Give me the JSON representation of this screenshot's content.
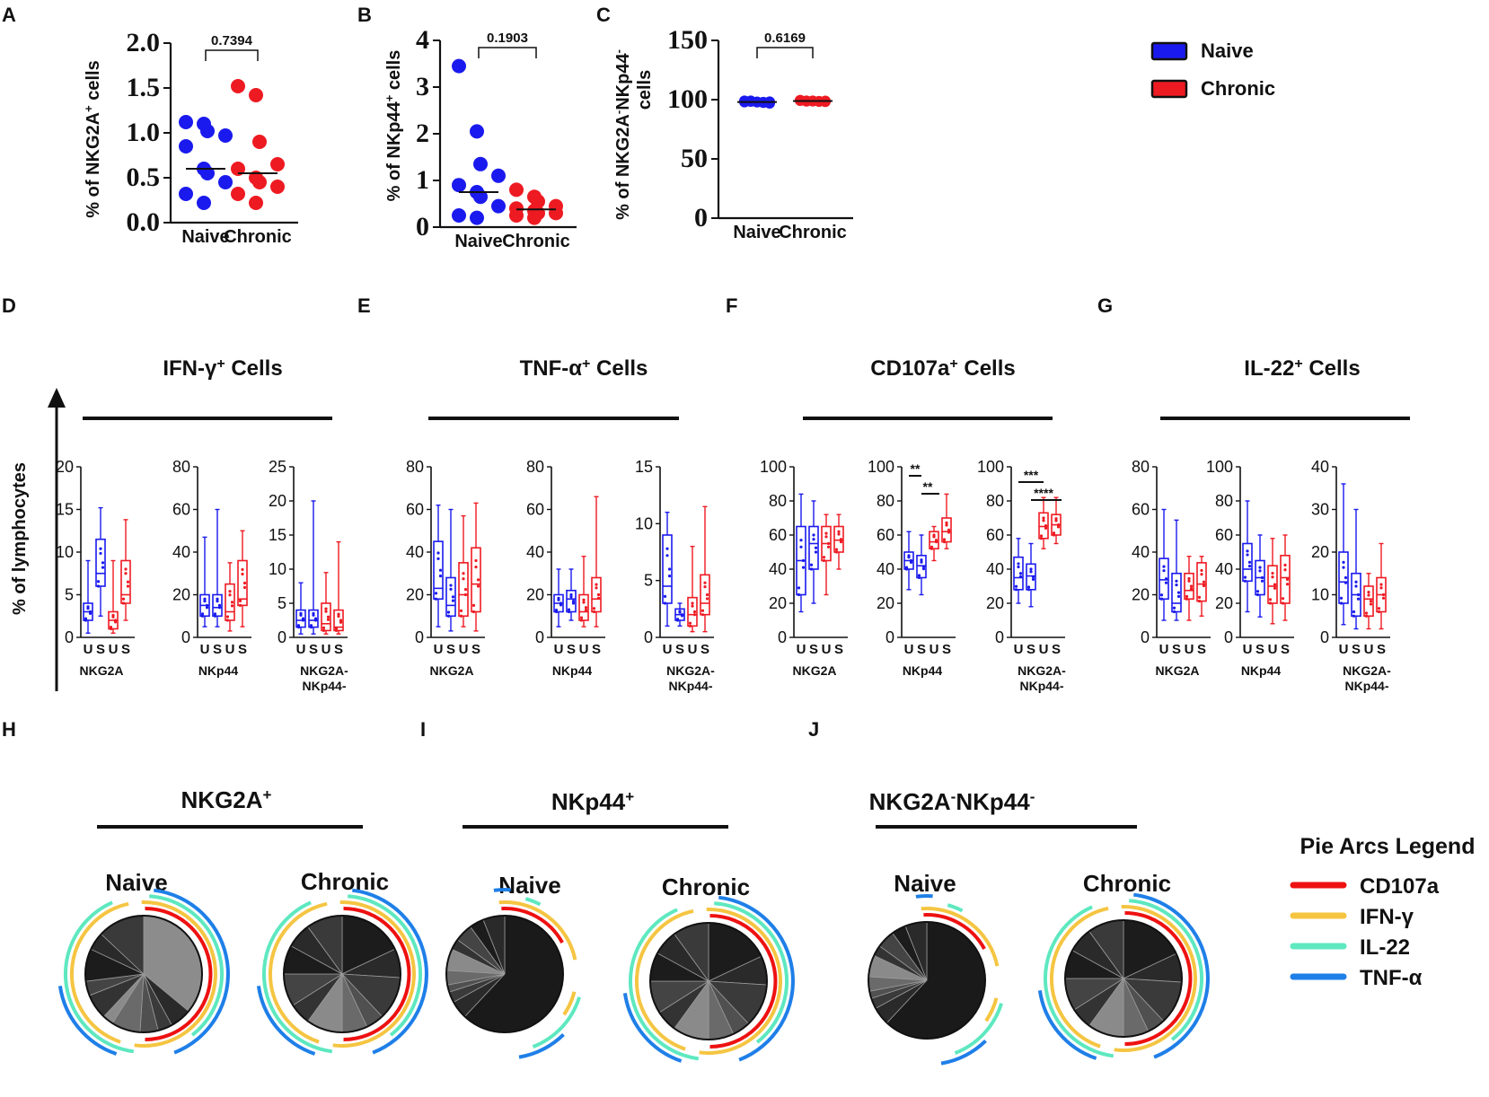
{
  "colors": {
    "naive": "#1a1aee",
    "chronic": "#ee1a22",
    "cd107a": "#ee1111",
    "ifng": "#f5c542",
    "il22": "#5ee8c0",
    "tnfa": "#1f7fe8",
    "pie_dark": "#1c1c1c"
  },
  "panel_letters": [
    "A",
    "B",
    "C",
    "D",
    "E",
    "F",
    "G",
    "H",
    "I",
    "J"
  ],
  "legend": {
    "naive": "Naive",
    "chronic": "Chronic"
  },
  "lymph_axis_label": "% of lymphocytes",
  "chart_data": [
    {
      "id": "A",
      "type": "scatter",
      "ylabel": "% of NKG2A+ cells",
      "ylabel_main": "% of NKG2A",
      "ylabel_sup": "+",
      "ylabel_rest": " cells",
      "ylim": [
        0,
        2.0
      ],
      "yticks": [
        "0.0",
        "0.5",
        "1.0",
        "1.5",
        "2.0"
      ],
      "yvals": [
        0,
        0.5,
        1.0,
        1.5,
        2.0
      ],
      "categories": [
        "Naive",
        "Chronic"
      ],
      "pvalue": "0.7394",
      "series": [
        {
          "name": "Naive",
          "values": [
            1.12,
            1.1,
            1.02,
            0.97,
            0.85,
            0.6,
            0.55,
            0.45,
            0.32,
            0.22
          ],
          "mean": 0.6
        },
        {
          "name": "Chronic",
          "values": [
            1.52,
            1.42,
            0.9,
            0.65,
            0.6,
            0.5,
            0.45,
            0.4,
            0.32,
            0.22
          ],
          "mean": 0.55
        }
      ]
    },
    {
      "id": "B",
      "type": "scatter",
      "ylabel": "% of NKp44+ cells",
      "ylabel_main": "% of NKp44",
      "ylabel_sup": "+",
      "ylabel_rest": " cells",
      "ylim": [
        0,
        4
      ],
      "yticks": [
        "0",
        "1",
        "2",
        "3",
        "4"
      ],
      "yvals": [
        0,
        1,
        2,
        3,
        4
      ],
      "categories": [
        "Naive",
        "Chronic"
      ],
      "pvalue": "0.1903",
      "series": [
        {
          "name": "Naive",
          "values": [
            3.45,
            2.05,
            1.35,
            1.1,
            0.9,
            0.75,
            0.65,
            0.45,
            0.25,
            0.2
          ],
          "mean": 0.75
        },
        {
          "name": "Chronic",
          "values": [
            0.8,
            0.65,
            0.55,
            0.45,
            0.4,
            0.35,
            0.3,
            0.3,
            0.25,
            0.2
          ],
          "mean": 0.38
        }
      ]
    },
    {
      "id": "C",
      "type": "scatter",
      "ylabel": "% of NKG2A-NKp44- cells",
      "ylabel_main": "% of NKG2A",
      "ylabel_sup": "-",
      "ylabel_mid": "NKp44",
      "ylabel_sup2": "-",
      "ylabel_line2": "cells",
      "ylim": [
        0,
        150
      ],
      "yticks": [
        "0",
        "50",
        "100",
        "150"
      ],
      "yvals": [
        0,
        50,
        100,
        150
      ],
      "categories": [
        "Naive",
        "Chronic"
      ],
      "pvalue": "0.6169",
      "series": [
        {
          "name": "Naive",
          "values": [
            99,
            98.5,
            98,
            97.5,
            97,
            98,
            99,
            98,
            97.8,
            98.2
          ],
          "mean": 98
        },
        {
          "name": "Chronic",
          "values": [
            99.5,
            99,
            98.8,
            98.5,
            98.3,
            99.2,
            98.7,
            99,
            98.6,
            98.9
          ],
          "mean": 98.9
        }
      ]
    },
    {
      "id": "D",
      "type": "box",
      "title_main": "IFN-γ",
      "title_sup": "+",
      "title_rest": " Cells",
      "groups": [
        {
          "label": "NKG2A",
          "yticks": [
            "0",
            "5",
            "10",
            "15",
            "20"
          ],
          "ymax": 20,
          "ticks_xlabels": [
            "U",
            "S",
            "U",
            "S"
          ],
          "boxes": [
            {
              "min": 0.5,
              "q1": 2,
              "med": 3,
              "q3": 4,
              "max": 9
            },
            {
              "min": 2.5,
              "q1": 6,
              "med": 7.5,
              "q3": 11.5,
              "max": 15.2
            },
            {
              "min": 0.5,
              "q1": 1,
              "med": 2,
              "q3": 3,
              "max": 9
            },
            {
              "min": 2,
              "q1": 4,
              "med": 5,
              "q3": 9,
              "max": 13.8
            }
          ]
        },
        {
          "label": "NKp44",
          "yticks": [
            "0",
            "20",
            "40",
            "60",
            "80"
          ],
          "ymax": 80,
          "ticks_xlabels": [
            "U",
            "S",
            "U",
            "S"
          ],
          "boxes": [
            {
              "min": 5,
              "q1": 10,
              "med": 15,
              "q3": 20,
              "max": 47
            },
            {
              "min": 5,
              "q1": 10,
              "med": 14,
              "q3": 20,
              "max": 60
            },
            {
              "min": 3,
              "q1": 8,
              "med": 12,
              "q3": 25,
              "max": 35
            },
            {
              "min": 5,
              "q1": 15,
              "med": 18,
              "q3": 36,
              "max": 50
            }
          ]
        },
        {
          "label": "NKG2A-NKp44-",
          "label_line1": "NKG2A-",
          "label_line2": "NKp44-",
          "yticks": [
            "0",
            "5",
            "10",
            "15",
            "20",
            "25"
          ],
          "ymax": 25,
          "ticks_xlabels": [
            "U",
            "S",
            "U",
            "S"
          ],
          "boxes": [
            {
              "min": 0.5,
              "q1": 1.5,
              "med": 2.5,
              "q3": 4,
              "max": 8
            },
            {
              "min": 0.5,
              "q1": 1.5,
              "med": 2.5,
              "q3": 4,
              "max": 20
            },
            {
              "min": 0.5,
              "q1": 1,
              "med": 2,
              "q3": 5,
              "max": 9.5
            },
            {
              "min": 0.5,
              "q1": 1,
              "med": 1.5,
              "q3": 4,
              "max": 14
            }
          ]
        }
      ]
    },
    {
      "id": "E",
      "type": "box",
      "title_main": "TNF-α",
      "title_sup": "+",
      "title_rest": " Cells",
      "groups": [
        {
          "label": "NKG2A",
          "yticks": [
            "0",
            "20",
            "40",
            "60",
            "80"
          ],
          "ymax": 80,
          "ticks_xlabels": [
            "U",
            "S",
            "U",
            "S"
          ],
          "boxes": [
            {
              "min": 5,
              "q1": 18,
              "med": 23,
              "q3": 45,
              "max": 62
            },
            {
              "min": 3,
              "q1": 10,
              "med": 15,
              "q3": 28,
              "max": 60
            },
            {
              "min": 5,
              "q1": 10,
              "med": 20,
              "q3": 35,
              "max": 57
            },
            {
              "min": 3,
              "q1": 12,
              "med": 25,
              "q3": 42,
              "max": 63
            }
          ]
        },
        {
          "label": "NKp44",
          "yticks": [
            "0",
            "20",
            "40",
            "60",
            "80"
          ],
          "ymax": 80,
          "ticks_xlabels": [
            "U",
            "S",
            "U",
            "S"
          ],
          "boxes": [
            {
              "min": 5,
              "q1": 12,
              "med": 16,
              "q3": 20,
              "max": 32
            },
            {
              "min": 8,
              "q1": 12,
              "med": 18,
              "q3": 22,
              "max": 32
            },
            {
              "min": 5,
              "q1": 8,
              "med": 12,
              "q3": 20,
              "max": 38
            },
            {
              "min": 5,
              "q1": 12,
              "med": 18,
              "q3": 28,
              "max": 66
            }
          ]
        },
        {
          "label": "NKG2A-NKp44-",
          "label_line1": "NKG2A-",
          "label_line2": "NKp44-",
          "yticks": [
            "0",
            "5",
            "10",
            "15"
          ],
          "ymax": 15,
          "ticks_xlabels": [
            "U",
            "S",
            "U",
            "S"
          ],
          "boxes": [
            {
              "min": 1,
              "q1": 3,
              "med": 4.5,
              "q3": 9,
              "max": 11
            },
            {
              "min": 1,
              "q1": 1.5,
              "med": 2,
              "q3": 2.5,
              "max": 3
            },
            {
              "min": 0.5,
              "q1": 1,
              "med": 2,
              "q3": 3.5,
              "max": 8
            },
            {
              "min": 0.5,
              "q1": 2,
              "med": 3,
              "q3": 5.5,
              "max": 11.5
            }
          ]
        }
      ]
    },
    {
      "id": "F",
      "type": "box",
      "title_main": "CD107a",
      "title_sup": "+",
      "title_rest": " Cells",
      "groups": [
        {
          "label": "NKG2A",
          "yticks": [
            "0",
            "20",
            "40",
            "60",
            "80",
            "100"
          ],
          "ymax": 100,
          "ticks_xlabels": [
            "U",
            "S",
            "U",
            "S"
          ],
          "boxes": [
            {
              "min": 15,
              "q1": 25,
              "med": 45,
              "q3": 65,
              "max": 84
            },
            {
              "min": 20,
              "q1": 40,
              "med": 55,
              "q3": 65,
              "max": 80
            },
            {
              "min": 25,
              "q1": 45,
              "med": 55,
              "q3": 65,
              "max": 72
            },
            {
              "min": 40,
              "q1": 50,
              "med": 57,
              "q3": 65,
              "max": 72
            }
          ]
        },
        {
          "label": "NKp44",
          "yticks": [
            "0",
            "20",
            "40",
            "60",
            "80",
            "100"
          ],
          "ymax": 100,
          "ticks_xlabels": [
            "U",
            "S",
            "U",
            "S"
          ],
          "sig": [
            {
              "from": 0,
              "to": 1,
              "level": 0,
              "text": "**"
            },
            {
              "from": 1,
              "to": 2,
              "level": 1,
              "text": "**"
            }
          ],
          "boxes": [
            {
              "min": 28,
              "q1": 40,
              "med": 45,
              "q3": 50,
              "max": 62
            },
            {
              "min": 25,
              "q1": 35,
              "med": 42,
              "q3": 48,
              "max": 60
            },
            {
              "min": 45,
              "q1": 52,
              "med": 56,
              "q3": 62,
              "max": 65
            },
            {
              "min": 52,
              "q1": 56,
              "med": 62,
              "q3": 70,
              "max": 84
            }
          ]
        },
        {
          "label": "NKG2A-NKp44-",
          "label_line1": "NKG2A-",
          "label_line2": "NKp44-",
          "yticks": [
            "0",
            "20",
            "40",
            "60",
            "80",
            "100"
          ],
          "ymax": 100,
          "ticks_xlabels": [
            "U",
            "S",
            "U",
            "S"
          ],
          "sig": [
            {
              "from": 0,
              "to": 2,
              "level": 0,
              "text": "***"
            },
            {
              "from": 1,
              "to": 3,
              "level": 1,
              "text": "****"
            }
          ],
          "boxes": [
            {
              "min": 20,
              "q1": 28,
              "med": 35,
              "q3": 47,
              "max": 58
            },
            {
              "min": 18,
              "q1": 28,
              "med": 36,
              "q3": 43,
              "max": 55
            },
            {
              "min": 52,
              "q1": 58,
              "med": 65,
              "q3": 73,
              "max": 82
            },
            {
              "min": 55,
              "q1": 60,
              "med": 66,
              "q3": 72,
              "max": 82
            }
          ]
        }
      ]
    },
    {
      "id": "G",
      "type": "box",
      "title_main": "IL-22",
      "title_sup": "+",
      "title_rest": " Cells",
      "groups": [
        {
          "label": "NKG2A",
          "yticks": [
            "0",
            "20",
            "40",
            "60",
            "80"
          ],
          "ymax": 80,
          "ticks_xlabels": [
            "U",
            "S",
            "U",
            "S"
          ],
          "boxes": [
            {
              "min": 8,
              "q1": 18,
              "med": 27,
              "q3": 37,
              "max": 60
            },
            {
              "min": 8,
              "q1": 12,
              "med": 16,
              "q3": 30,
              "max": 55
            },
            {
              "min": 8,
              "q1": 18,
              "med": 22,
              "q3": 30,
              "max": 38
            },
            {
              "min": 10,
              "q1": 17,
              "med": 25,
              "q3": 35,
              "max": 38
            }
          ]
        },
        {
          "label": "NKp44",
          "yticks": [
            "0",
            "20",
            "40",
            "60",
            "80",
            "100"
          ],
          "ymax": 100,
          "ticks_xlabels": [
            "U",
            "S",
            "U",
            "S"
          ],
          "boxes": [
            {
              "min": 15,
              "q1": 33,
              "med": 40,
              "q3": 55,
              "max": 80
            },
            {
              "min": 12,
              "q1": 25,
              "med": 35,
              "q3": 45,
              "max": 60
            },
            {
              "min": 8,
              "q1": 20,
              "med": 30,
              "q3": 42,
              "max": 58
            },
            {
              "min": 10,
              "q1": 20,
              "med": 35,
              "q3": 48,
              "max": 60
            }
          ]
        },
        {
          "label": "NKG2A-NKp44-",
          "label_line1": "NKG2A-",
          "label_line2": "NKp44-",
          "yticks": [
            "0",
            "10",
            "20",
            "30",
            "40"
          ],
          "ymax": 40,
          "ticks_xlabels": [
            "U",
            "S",
            "U",
            "S"
          ],
          "boxes": [
            {
              "min": 3,
              "q1": 8,
              "med": 13,
              "q3": 20,
              "max": 36
            },
            {
              "min": 2,
              "q1": 5,
              "med": 10,
              "q3": 15,
              "max": 30
            },
            {
              "min": 2,
              "q1": 5,
              "med": 9,
              "q3": 12,
              "max": 15
            },
            {
              "min": 2,
              "q1": 6,
              "med": 10,
              "q3": 14,
              "max": 22
            }
          ]
        }
      ]
    },
    {
      "id": "pies",
      "type": "pie",
      "legend_title": "Pie Arcs Legend",
      "legend_items": [
        "CD107a",
        "IFN-γ",
        "IL-22",
        "TNF-α"
      ],
      "sections": [
        {
          "id": "H",
          "title_main": "NKG2A",
          "title_sup": "+",
          "titles": [
            "Naive",
            "Chronic"
          ]
        },
        {
          "id": "I",
          "title_main": "NKp44",
          "title_sup": "+",
          "titles": [
            "Naive",
            "Chronic"
          ]
        },
        {
          "id": "J",
          "title_main": "NKG2A",
          "title_sup": "-",
          "title_mid": "NKp44",
          "title_sup2": "-",
          "titles": [
            "Naive",
            "Chronic"
          ]
        }
      ]
    }
  ]
}
